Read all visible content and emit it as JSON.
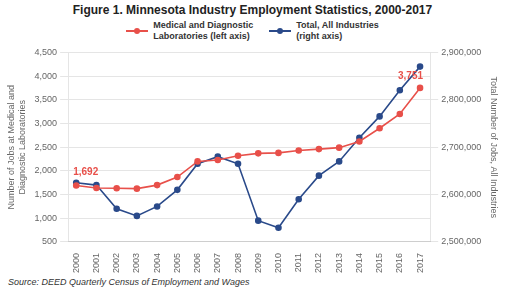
{
  "chart_data": {
    "type": "line",
    "title": "Figure 1. Minnesota Industry Employment Statistics, 2000-2017",
    "x": [
      2000,
      2001,
      2002,
      2003,
      2004,
      2005,
      2006,
      2007,
      2008,
      2009,
      2010,
      2011,
      2012,
      2013,
      2014,
      2015,
      2016,
      2017
    ],
    "xlim": [
      1999.6,
      2017.5
    ],
    "xticks": [
      2000,
      2001,
      2002,
      2003,
      2004,
      2005,
      2006,
      2007,
      2008,
      2009,
      2010,
      2011,
      2012,
      2013,
      2014,
      2015,
      2016,
      2017
    ],
    "ylim": [
      500,
      4500
    ],
    "yticks": [
      500,
      {
        "value": 1000,
        "label": "1,000"
      },
      {
        "value": 1500,
        "label": "1,500"
      },
      {
        "value": 2000,
        "label": "2,000"
      },
      {
        "value": 2500,
        "label": "2,500"
      },
      {
        "value": 3000,
        "label": "3,000"
      },
      {
        "value": 3500,
        "label": "3,500"
      },
      {
        "value": 4000,
        "label": "4,000"
      },
      {
        "value": 4500,
        "label": "4,500"
      }
    ],
    "y2lim": [
      2500000,
      2900000
    ],
    "y2ticks": [
      {
        "value": 2500000,
        "label": "2,500,000"
      },
      {
        "value": 2600000,
        "label": "2,600,000"
      },
      {
        "value": 2700000,
        "label": "2,700,000"
      },
      {
        "value": 2800000,
        "label": "2,800,000"
      },
      {
        "value": 2900000,
        "label": "2,900,000"
      }
    ],
    "ylabel": "Number of Jobs at Medical and\nDiagnostic Laboratories",
    "y2label": "Total Number of Jobs, All Industries",
    "series": [
      {
        "name": "Medical and Diagnostic\nLaboratories (left axis)",
        "color": "#e8504a",
        "marker": "circle",
        "axis": "y",
        "values": [
          1692,
          1640,
          1635,
          1625,
          1700,
          1870,
          2200,
          2230,
          2320,
          2370,
          2380,
          2430,
          2460,
          2490,
          2620,
          2900,
          3200,
          3751
        ]
      },
      {
        "name": "Total, All Industries\n(right axis)",
        "color": "#2a4a8a",
        "marker": "circle",
        "axis": "y2",
        "values": [
          2625000,
          2620000,
          2570000,
          2555000,
          2575000,
          2610000,
          2665000,
          2680000,
          2665000,
          2545000,
          2530000,
          2590000,
          2640000,
          2670000,
          2720000,
          2765000,
          2820000,
          2870000
        ]
      }
    ],
    "annotations": [
      {
        "text": "1,692",
        "x": 2000,
        "y": 1692
      },
      {
        "text": "3,751",
        "x": 2017,
        "y": 3751
      }
    ],
    "source": "Source: DEED Quarterly Census of Employment and Wages",
    "grid": true,
    "legend": "top"
  }
}
